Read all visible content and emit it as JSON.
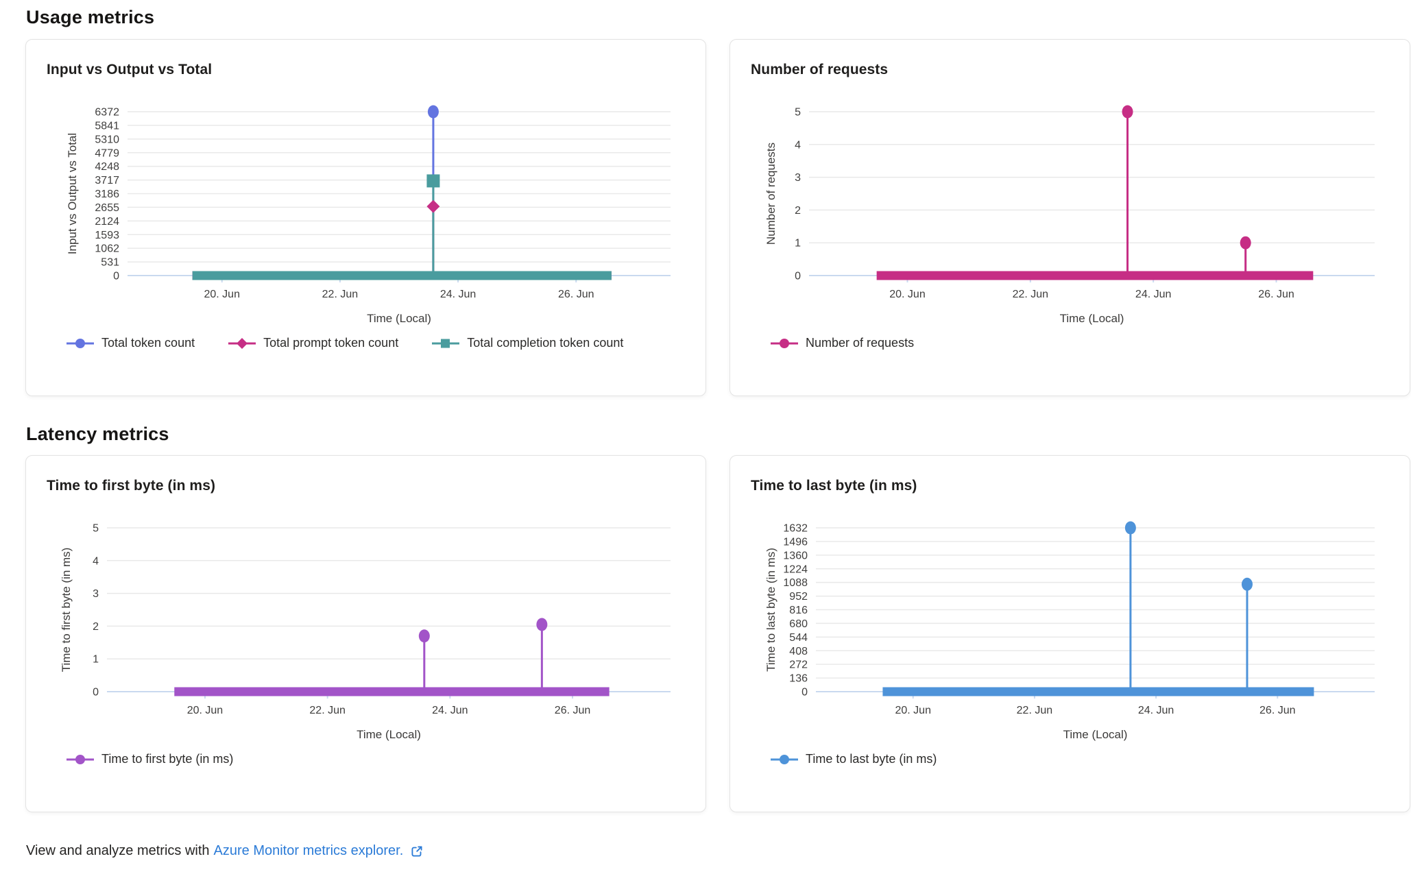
{
  "page": {
    "section_usage": "Usage metrics",
    "section_latency": "Latency metrics",
    "footer": {
      "text": "View and analyze metrics with",
      "link": "Azure Monitor metrics explorer.",
      "icon": "external-link-icon"
    }
  },
  "colors": {
    "grid": "#e9e9e9",
    "axis": "#c9d9ef",
    "tick_text": "#3f3e3d",
    "axis_title_text": "#3b3a39",
    "link": "#2b7bd7"
  },
  "chart_data": [
    {
      "type": "line",
      "title": "Input vs Output vs Total",
      "ylabel": "Input vs Output vs Total",
      "xlabel": "Time (Local)",
      "x_unit": "day of June",
      "x_range": [
        18.4,
        27.6
      ],
      "x_ticks": [
        {
          "value": 20,
          "label": "20. Jun"
        },
        {
          "value": 22,
          "label": "22. Jun"
        },
        {
          "value": 24,
          "label": "24. Jun"
        },
        {
          "value": 26,
          "label": "26. Jun"
        }
      ],
      "ylim": [
        0,
        6372
      ],
      "y_ticks": [
        0,
        531,
        1062,
        1593,
        2124,
        2655,
        3186,
        3717,
        4248,
        4779,
        5310,
        5841,
        6372
      ],
      "grid": true,
      "legend_position": "bottom-left",
      "series": [
        {
          "name": "Total token count",
          "color": "#6374E0",
          "marker": "circle",
          "baseline": {
            "x_start": 19.5,
            "x_end": 26.6,
            "value": 0
          },
          "spikes": [
            {
              "x": 23.58,
              "y": 6372
            }
          ]
        },
        {
          "name": "Total prompt token count",
          "color": "#C62E85",
          "marker": "diamond",
          "baseline": {
            "x_start": 19.5,
            "x_end": 26.6,
            "value": 0
          },
          "spikes": [
            {
              "x": 23.58,
              "y": 2690
            }
          ]
        },
        {
          "name": "Total completion token count",
          "color": "#4A9C9E",
          "marker": "square",
          "baseline": {
            "x_start": 19.5,
            "x_end": 26.6,
            "value": 0
          },
          "spikes": [
            {
              "x": 23.58,
              "y": 3682
            }
          ]
        }
      ]
    },
    {
      "type": "line",
      "title": "Number of requests",
      "ylabel": "Number of requests",
      "xlabel": "Time (Local)",
      "x_unit": "day of June",
      "x_range": [
        18.4,
        27.6
      ],
      "x_ticks": [
        {
          "value": 20,
          "label": "20. Jun"
        },
        {
          "value": 22,
          "label": "22. Jun"
        },
        {
          "value": 24,
          "label": "24. Jun"
        },
        {
          "value": 26,
          "label": "26. Jun"
        }
      ],
      "ylim": [
        0,
        5
      ],
      "y_ticks": [
        0,
        1,
        2,
        3,
        4,
        5
      ],
      "grid": true,
      "legend_position": "bottom-left",
      "series": [
        {
          "name": "Number of requests",
          "color": "#C62E85",
          "marker": "circle",
          "baseline": {
            "x_start": 19.5,
            "x_end": 26.6,
            "value": 0
          },
          "spikes": [
            {
              "x": 23.58,
              "y": 5
            },
            {
              "x": 25.5,
              "y": 1
            }
          ]
        }
      ]
    },
    {
      "type": "line",
      "title": "Time to first byte (in ms)",
      "ylabel": "Time to first byte (in ms)",
      "xlabel": "Time (Local)",
      "x_unit": "day of June",
      "x_range": [
        18.4,
        27.6
      ],
      "x_ticks": [
        {
          "value": 20,
          "label": "20. Jun"
        },
        {
          "value": 22,
          "label": "22. Jun"
        },
        {
          "value": 24,
          "label": "24. Jun"
        },
        {
          "value": 26,
          "label": "26. Jun"
        }
      ],
      "ylim": [
        0,
        5
      ],
      "y_ticks": [
        0,
        1,
        2,
        3,
        4,
        5
      ],
      "grid": true,
      "legend_position": "bottom-left",
      "series": [
        {
          "name": "Time to first byte (in ms)",
          "color": "#A254C8",
          "marker": "circle",
          "baseline": {
            "x_start": 19.5,
            "x_end": 26.6,
            "value": 0
          },
          "spikes": [
            {
              "x": 23.58,
              "y": 1.7
            },
            {
              "x": 25.5,
              "y": 2.05
            }
          ]
        }
      ]
    },
    {
      "type": "line",
      "title": "Time to last byte (in ms)",
      "ylabel": "Time to last byte (in ms)",
      "xlabel": "Time (Local)",
      "x_unit": "day of June",
      "x_range": [
        18.4,
        27.6
      ],
      "x_ticks": [
        {
          "value": 20,
          "label": "20. Jun"
        },
        {
          "value": 22,
          "label": "22. Jun"
        },
        {
          "value": 24,
          "label": "24. Jun"
        },
        {
          "value": 26,
          "label": "26. Jun"
        }
      ],
      "ylim": [
        0,
        1632
      ],
      "y_ticks": [
        0,
        136,
        272,
        408,
        544,
        680,
        816,
        952,
        1088,
        1224,
        1360,
        1496,
        1632
      ],
      "grid": true,
      "legend_position": "bottom-left",
      "series": [
        {
          "name": "Time to last byte (in ms)",
          "color": "#4E93D9",
          "marker": "circle",
          "baseline": {
            "x_start": 19.5,
            "x_end": 26.6,
            "value": 0
          },
          "spikes": [
            {
              "x": 23.58,
              "y": 1632
            },
            {
              "x": 25.5,
              "y": 1070
            }
          ]
        }
      ]
    }
  ]
}
